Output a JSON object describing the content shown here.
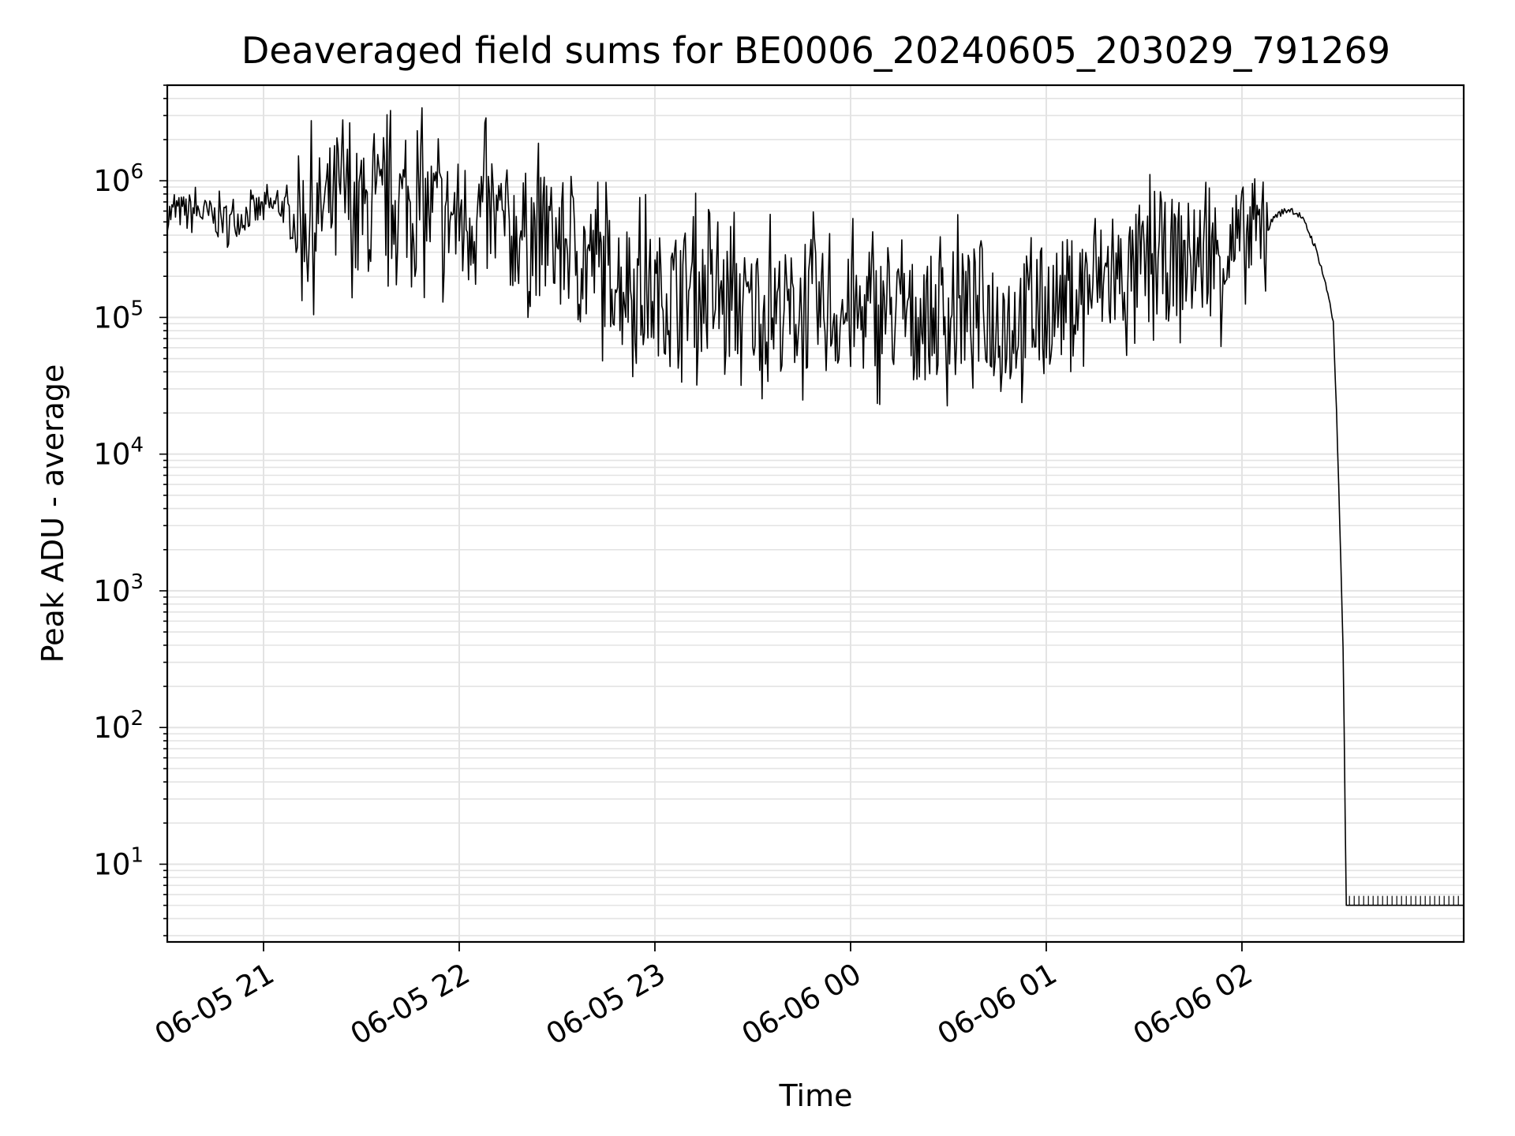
{
  "chart_data": {
    "type": "line",
    "title": "Deaveraged field sums for BE0006_20240605_203029_791269",
    "xlabel": "Time",
    "ylabel": "Peak ADU - average",
    "y_scale": "log",
    "ylim": [
      2.7,
      5000000
    ],
    "xlim": [
      "2024-06-05 20:30:29",
      "2024-06-06 03:08:00"
    ],
    "x_ticks": [
      "06-05 21",
      "06-05 22",
      "06-05 23",
      "06-06 00",
      "06-06 01",
      "06-06 02"
    ],
    "y_ticks": [
      {
        "base": "10",
        "exp": "1"
      },
      {
        "base": "10",
        "exp": "2"
      },
      {
        "base": "10",
        "exp": "3"
      },
      {
        "base": "10",
        "exp": "4"
      },
      {
        "base": "10",
        "exp": "5"
      },
      {
        "base": "10",
        "exp": "6"
      }
    ],
    "grid": true,
    "line_color": "#000000",
    "series": [
      {
        "x": [
          "2024-06-05 20:30:29",
          "2024-06-05 20:38:00",
          "2024-06-05 20:45:00",
          "2024-06-05 20:50:00",
          "2024-06-05 20:55:00",
          "2024-06-05 21:00:00",
          "2024-06-05 21:05:00",
          "2024-06-05 21:10:00",
          "2024-06-05 21:15:00",
          "2024-06-05 21:20:00",
          "2024-06-05 21:25:00",
          "2024-06-05 21:30:00",
          "2024-06-05 21:35:00",
          "2024-06-05 21:40:00",
          "2024-06-05 21:45:00",
          "2024-06-05 21:50:00",
          "2024-06-05 21:55:00",
          "2024-06-05 22:00:00",
          "2024-06-05 22:05:00",
          "2024-06-05 22:10:00",
          "2024-06-05 22:15:00",
          "2024-06-05 22:20:00",
          "2024-06-05 22:25:00",
          "2024-06-05 22:30:00",
          "2024-06-05 22:35:00",
          "2024-06-05 22:40:00",
          "2024-06-05 22:45:00",
          "2024-06-05 22:50:00",
          "2024-06-05 22:55:00",
          "2024-06-05 23:00:00",
          "2024-06-05 23:05:00",
          "2024-06-05 23:10:00",
          "2024-06-05 23:15:00",
          "2024-06-05 23:20:00",
          "2024-06-05 23:25:00",
          "2024-06-05 23:30:00",
          "2024-06-05 23:35:00",
          "2024-06-05 23:40:00",
          "2024-06-05 23:45:00",
          "2024-06-05 23:50:00",
          "2024-06-05 23:55:00",
          "2024-06-06 00:00:00",
          "2024-06-06 00:05:00",
          "2024-06-06 00:10:00",
          "2024-06-06 00:15:00",
          "2024-06-06 00:20:00",
          "2024-06-06 00:25:00",
          "2024-06-06 00:30:00",
          "2024-06-06 00:35:00",
          "2024-06-06 00:40:00",
          "2024-06-06 00:45:00",
          "2024-06-06 00:50:00",
          "2024-06-06 00:55:00",
          "2024-06-06 01:00:00",
          "2024-06-06 01:05:00",
          "2024-06-06 01:10:00",
          "2024-06-06 01:15:00",
          "2024-06-06 01:20:00",
          "2024-06-06 01:25:00",
          "2024-06-06 01:30:00",
          "2024-06-06 01:35:00",
          "2024-06-06 01:40:00",
          "2024-06-06 01:45:00",
          "2024-06-06 01:50:00",
          "2024-06-06 01:55:00",
          "2024-06-06 02:00:00",
          "2024-06-06 02:05:00",
          "2024-06-06 02:08:00",
          "2024-06-06 02:10:00",
          "2024-06-06 02:13:00",
          "2024-06-06 02:15:00",
          "2024-06-06 02:18:00",
          "2024-06-06 02:20:00",
          "2024-06-06 02:22:00",
          "2024-06-06 02:24:00",
          "2024-06-06 02:25:00",
          "2024-06-06 02:26:00",
          "2024-06-06 02:27:00",
          "2024-06-06 02:28:00",
          "2024-06-06 02:29:00",
          "2024-06-06 02:30:00",
          "2024-06-06 02:31:00",
          "2024-06-06 02:32:00",
          "2024-06-06 02:40:00",
          "2024-06-06 02:50:00",
          "2024-06-06 03:00:00",
          "2024-06-06 03:08:00"
        ],
        "y": [
          550000,
          600000,
          520000,
          480000,
          560000,
          600000,
          650000,
          500000,
          450000,
          600000,
          700000,
          520000,
          480000,
          650000,
          600000,
          550000,
          500000,
          480000,
          520000,
          450000,
          400000,
          380000,
          350000,
          320000,
          300000,
          250000,
          200000,
          180000,
          150000,
          130000,
          140000,
          150000,
          130000,
          120000,
          110000,
          100000,
          110000,
          100000,
          95000,
          100000,
          95000,
          90000,
          95000,
          100000,
          90000,
          85000,
          90000,
          95000,
          100000,
          110000,
          95000,
          90000,
          100000,
          110000,
          120000,
          140000,
          160000,
          170000,
          180000,
          200000,
          220000,
          250000,
          230000,
          260000,
          270000,
          300000,
          350000,
          450000,
          550000,
          600000,
          620000,
          550000,
          450000,
          350000,
          250000,
          200000,
          160000,
          130000,
          90000,
          20000,
          3000,
          400,
          5,
          5,
          5,
          5,
          5
        ]
      }
    ]
  }
}
